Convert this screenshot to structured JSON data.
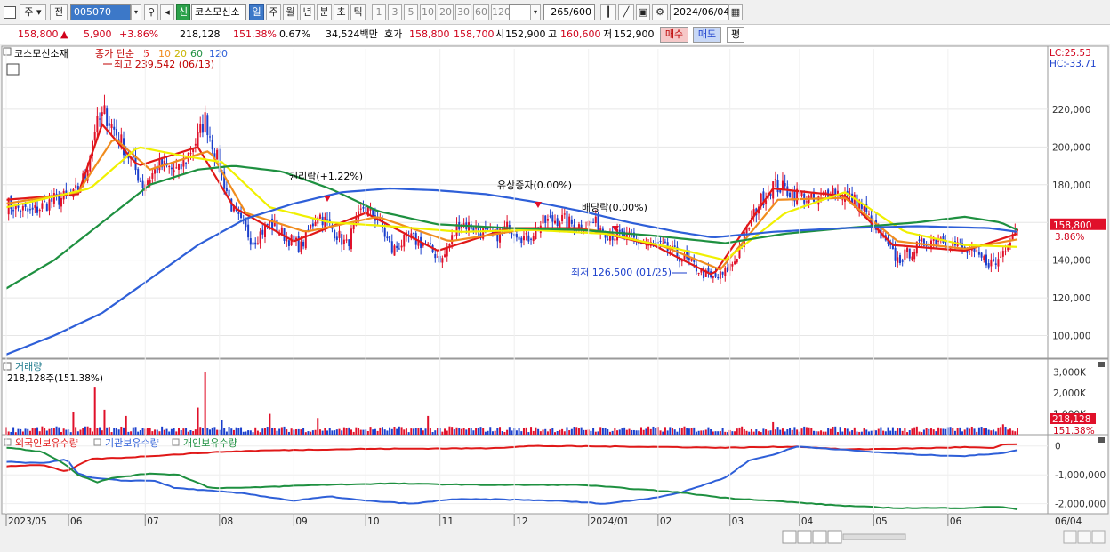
{
  "toolbar": {
    "type_label": "주",
    "prev_label": "전",
    "code": "005070",
    "name": "코스모신소",
    "period_tabs": [
      "일",
      "주",
      "월",
      "년",
      "분",
      "초",
      "틱"
    ],
    "active_period": "일",
    "intervals": [
      "1",
      "3",
      "5",
      "10",
      "20",
      "30",
      "60",
      "120"
    ],
    "count": "265",
    "count_max": "/600",
    "date": "2024/06/04",
    "new_badge": "신"
  },
  "quote": {
    "price": "158,800",
    "change": "5,900",
    "change_pct": "+3.86%",
    "volume": "218,128",
    "volume_ratio": "151.38%",
    "turnover": "0.67%",
    "amount": "34,524백만",
    "bid_label": "호가",
    "ask": "158,800",
    "bid": "158,700",
    "open_label": "시",
    "open": "152,900",
    "high_label": "고",
    "high": "160,600",
    "low_label": "저",
    "low": "152,900",
    "buy_label": "매수",
    "sell_label": "매도",
    "eval_label": "평"
  },
  "colors": {
    "up": "#e0102a",
    "down": "#1a3ecc",
    "ma5": "#e01818",
    "ma10": "#f08c1e",
    "ma20": "#f0f000",
    "ma60": "#1e9040",
    "ma120": "#2e5fd8"
  },
  "chart_data": [
    {
      "type": "candlestick",
      "title": "코스모신소재",
      "legend": [
        "종가 단순",
        "5",
        "10",
        "20",
        "60",
        "120"
      ],
      "y_ticks": [
        100000,
        120000,
        140000,
        160000,
        180000,
        200000,
        220000
      ],
      "y_tick_labels": [
        "100,000",
        "120,000",
        "140,000",
        "160,000",
        "180,000",
        "200,000",
        "220,000"
      ],
      "ylim": [
        88000,
        252000
      ],
      "x_ticks": [
        "2023/05",
        "06",
        "07",
        "08",
        "09",
        "10",
        "11",
        "12",
        "2024/01",
        "02",
        "03",
        "04",
        "05",
        "06"
      ],
      "last_date_label": "06/04",
      "last_price_label": "158,800",
      "last_pct_label": "3.86%",
      "lc_label": "LC:25.53",
      "hc_label": "HC:-33.71",
      "annotations": [
        {
          "text": "최고 239,542 (06/13)"
        },
        {
          "text": "최저 126,500 (01/25)"
        },
        {
          "text": "권리락(+1.22%)"
        },
        {
          "text": "유상증자(0.00%)"
        },
        {
          "text": "배당락(0.00%)"
        }
      ],
      "close_anchors": [
        [
          0,
          170000
        ],
        [
          10,
          165000
        ],
        [
          20,
          172000
        ],
        [
          28,
          174000
        ],
        [
          33,
          185000
        ],
        [
          37,
          210000
        ],
        [
          41,
          218000
        ],
        [
          50,
          198000
        ],
        [
          57,
          180000
        ],
        [
          64,
          190000
        ],
        [
          72,
          187000
        ],
        [
          80,
          205000
        ],
        [
          83,
          215000
        ],
        [
          90,
          185000
        ],
        [
          95,
          165000
        ],
        [
          103,
          150000
        ],
        [
          110,
          160000
        ],
        [
          117,
          152000
        ],
        [
          123,
          147000
        ],
        [
          130,
          165000
        ],
        [
          135,
          158000
        ],
        [
          142,
          148000
        ],
        [
          149,
          168000
        ],
        [
          155,
          162000
        ],
        [
          161,
          145000
        ],
        [
          168,
          152000
        ],
        [
          175,
          148000
        ],
        [
          182,
          140000
        ],
        [
          189,
          160000
        ],
        [
          196,
          157000
        ],
        [
          203,
          152000
        ],
        [
          210,
          158000
        ],
        [
          217,
          151000
        ],
        [
          224,
          160000
        ],
        [
          231,
          162000
        ],
        [
          238,
          158000
        ],
        [
          245,
          160000
        ],
        [
          252,
          154000
        ],
        [
          259,
          152000
        ],
        [
          266,
          149000
        ],
        [
          273,
          147000
        ],
        [
          280,
          143000
        ],
        [
          287,
          137000
        ],
        [
          294,
          130000
        ],
        [
          299,
          132000
        ],
        [
          304,
          140000
        ],
        [
          309,
          155000
        ],
        [
          314,
          170000
        ],
        [
          320,
          180000
        ],
        [
          326,
          177000
        ],
        [
          332,
          174000
        ],
        [
          338,
          170000
        ],
        [
          344,
          178000
        ],
        [
          350,
          174000
        ],
        [
          356,
          170000
        ],
        [
          361,
          160000
        ],
        [
          366,
          150000
        ],
        [
          372,
          140000
        ],
        [
          378,
          145000
        ],
        [
          384,
          150000
        ],
        [
          390,
          152000
        ],
        [
          396,
          148000
        ],
        [
          402,
          144000
        ],
        [
          408,
          140000
        ],
        [
          413,
          138000
        ],
        [
          416,
          145000
        ],
        [
          420,
          155000
        ],
        [
          422,
          158800
        ]
      ],
      "ma_series": [
        {
          "name": "5",
          "anchors": [
            [
              0,
              172000
            ],
            [
              30,
              175000
            ],
            [
              40,
              212000
            ],
            [
              55,
              190000
            ],
            [
              80,
              200000
            ],
            [
              95,
              168000
            ],
            [
              120,
              150000
            ],
            [
              150,
              165000
            ],
            [
              180,
              145000
            ],
            [
              210,
              157000
            ],
            [
              240,
              157000
            ],
            [
              270,
              148000
            ],
            [
              295,
              132000
            ],
            [
              320,
              178000
            ],
            [
              350,
              174000
            ],
            [
              370,
              148000
            ],
            [
              400,
              145000
            ],
            [
              422,
              154000
            ]
          ]
        },
        {
          "name": "10",
          "anchors": [
            [
              0,
              170000
            ],
            [
              30,
              176000
            ],
            [
              45,
              205000
            ],
            [
              60,
              188000
            ],
            [
              85,
              198000
            ],
            [
              100,
              165000
            ],
            [
              125,
              155000
            ],
            [
              155,
              163000
            ],
            [
              185,
              150000
            ],
            [
              215,
              156000
            ],
            [
              245,
              156000
            ],
            [
              275,
              147000
            ],
            [
              298,
              135000
            ],
            [
              322,
              172000
            ],
            [
              350,
              173000
            ],
            [
              372,
              150000
            ],
            [
              400,
              146000
            ],
            [
              422,
              151000
            ]
          ]
        },
        {
          "name": "20",
          "anchors": [
            [
              0,
              168000
            ],
            [
              35,
              178000
            ],
            [
              55,
              200000
            ],
            [
              75,
              195000
            ],
            [
              90,
              192000
            ],
            [
              110,
              168000
            ],
            [
              135,
              160000
            ],
            [
              160,
              158000
            ],
            [
              190,
              155000
            ],
            [
              220,
              156000
            ],
            [
              250,
              154000
            ],
            [
              280,
              146000
            ],
            [
              300,
              140000
            ],
            [
              325,
              165000
            ],
            [
              350,
              176000
            ],
            [
              375,
              155000
            ],
            [
              400,
              148000
            ],
            [
              422,
              147000
            ]
          ]
        },
        {
          "name": "60",
          "anchors": [
            [
              0,
              125000
            ],
            [
              20,
              140000
            ],
            [
              40,
              160000
            ],
            [
              60,
              180000
            ],
            [
              80,
              188000
            ],
            [
              95,
              190000
            ],
            [
              115,
              187000
            ],
            [
              135,
              178000
            ],
            [
              155,
              166000
            ],
            [
              180,
              159000
            ],
            [
              210,
              157000
            ],
            [
              240,
              156000
            ],
            [
              270,
              153000
            ],
            [
              300,
              149000
            ],
            [
              325,
              154000
            ],
            [
              350,
              157000
            ],
            [
              380,
              160000
            ],
            [
              400,
              163000
            ],
            [
              415,
              160000
            ],
            [
              422,
              156000
            ]
          ]
        },
        {
          "name": "120",
          "anchors": [
            [
              0,
              90000
            ],
            [
              20,
              100000
            ],
            [
              40,
              112000
            ],
            [
              60,
              130000
            ],
            [
              80,
              148000
            ],
            [
              100,
              162000
            ],
            [
              120,
              170000
            ],
            [
              140,
              176000
            ],
            [
              160,
              178000
            ],
            [
              180,
              177000
            ],
            [
              200,
              175000
            ],
            [
              220,
              171000
            ],
            [
              240,
              166000
            ],
            [
              260,
              160000
            ],
            [
              280,
              155000
            ],
            [
              295,
              152000
            ],
            [
              320,
              155000
            ],
            [
              350,
              157000
            ],
            [
              380,
              158000
            ],
            [
              410,
              157000
            ],
            [
              422,
              155000
            ]
          ]
        }
      ],
      "n_candles": 423
    },
    {
      "type": "bar",
      "title": "거래량",
      "current_label": "218,128주(151.38%)",
      "y_ticks": [
        1000000,
        2000000,
        3000000
      ],
      "y_tick_labels": [
        "1,000K",
        "2,000K",
        "3,000K"
      ],
      "ylim": [
        0,
        3500000
      ],
      "last_value_label": "218,128",
      "last_pct_label": "151.38%",
      "spikes": [
        [
          28,
          1100000
        ],
        [
          37,
          2300000
        ],
        [
          41,
          1200000
        ],
        [
          50,
          900000
        ],
        [
          83,
          3000000
        ],
        [
          80,
          1300000
        ],
        [
          90,
          700000
        ],
        [
          110,
          1000000
        ],
        [
          130,
          800000
        ],
        [
          176,
          900000
        ],
        [
          320,
          600000
        ],
        [
          416,
          500000
        ]
      ]
    },
    {
      "type": "line",
      "series_names": [
        "외국인보유수량",
        "기관보유수량",
        "개인보유수량"
      ],
      "y_ticks": [
        0,
        -1000000,
        -2000000
      ],
      "y_tick_labels": [
        "0",
        "-1,000,000",
        "-2,000,000"
      ],
      "ylim": [
        -2350000,
        300000
      ],
      "series": [
        {
          "name": "외국인보유수량",
          "anchors": [
            [
              0,
              -700000
            ],
            [
              15,
              -650000
            ],
            [
              25,
              -900000
            ],
            [
              35,
              -450000
            ],
            [
              50,
              -400000
            ],
            [
              70,
              -300000
            ],
            [
              90,
              -200000
            ],
            [
              110,
              -150000
            ],
            [
              150,
              -100000
            ],
            [
              200,
              -80000
            ],
            [
              220,
              0
            ],
            [
              260,
              -20000
            ],
            [
              300,
              -60000
            ],
            [
              330,
              -20000
            ],
            [
              350,
              -120000
            ],
            [
              380,
              -80000
            ],
            [
              400,
              -40000
            ],
            [
              413,
              -80000
            ],
            [
              415,
              50000
            ],
            [
              422,
              60000
            ]
          ]
        },
        {
          "name": "기관보유수량",
          "anchors": [
            [
              0,
              -550000
            ],
            [
              15,
              -600000
            ],
            [
              25,
              -450000
            ],
            [
              30,
              -950000
            ],
            [
              35,
              -1100000
            ],
            [
              48,
              -1200000
            ],
            [
              62,
              -1200000
            ],
            [
              70,
              -1450000
            ],
            [
              85,
              -1550000
            ],
            [
              100,
              -1650000
            ],
            [
              120,
              -1900000
            ],
            [
              135,
              -1750000
            ],
            [
              150,
              -1900000
            ],
            [
              170,
              -2000000
            ],
            [
              185,
              -1850000
            ],
            [
              205,
              -1850000
            ],
            [
              230,
              -1900000
            ],
            [
              250,
              -2000000
            ],
            [
              270,
              -1800000
            ],
            [
              282,
              -1600000
            ],
            [
              300,
              -1100000
            ],
            [
              310,
              -500000
            ],
            [
              320,
              -300000
            ],
            [
              330,
              -20000
            ],
            [
              345,
              -100000
            ],
            [
              360,
              -200000
            ],
            [
              380,
              -300000
            ],
            [
              400,
              -350000
            ],
            [
              415,
              -250000
            ],
            [
              422,
              -150000
            ]
          ]
        },
        {
          "name": "개인보유수량",
          "anchors": [
            [
              0,
              -50000
            ],
            [
              15,
              -200000
            ],
            [
              25,
              -650000
            ],
            [
              30,
              -1000000
            ],
            [
              38,
              -1250000
            ],
            [
              45,
              -1100000
            ],
            [
              60,
              -950000
            ],
            [
              72,
              -1000000
            ],
            [
              85,
              -1450000
            ],
            [
              100,
              -1450000
            ],
            [
              130,
              -1350000
            ],
            [
              160,
              -1300000
            ],
            [
              200,
              -1350000
            ],
            [
              240,
              -1350000
            ],
            [
              280,
              -1600000
            ],
            [
              300,
              -1800000
            ],
            [
              320,
              -1900000
            ],
            [
              345,
              -2050000
            ],
            [
              370,
              -2150000
            ],
            [
              400,
              -2150000
            ],
            [
              415,
              -2100000
            ],
            [
              422,
              -2200000
            ]
          ]
        }
      ]
    }
  ]
}
